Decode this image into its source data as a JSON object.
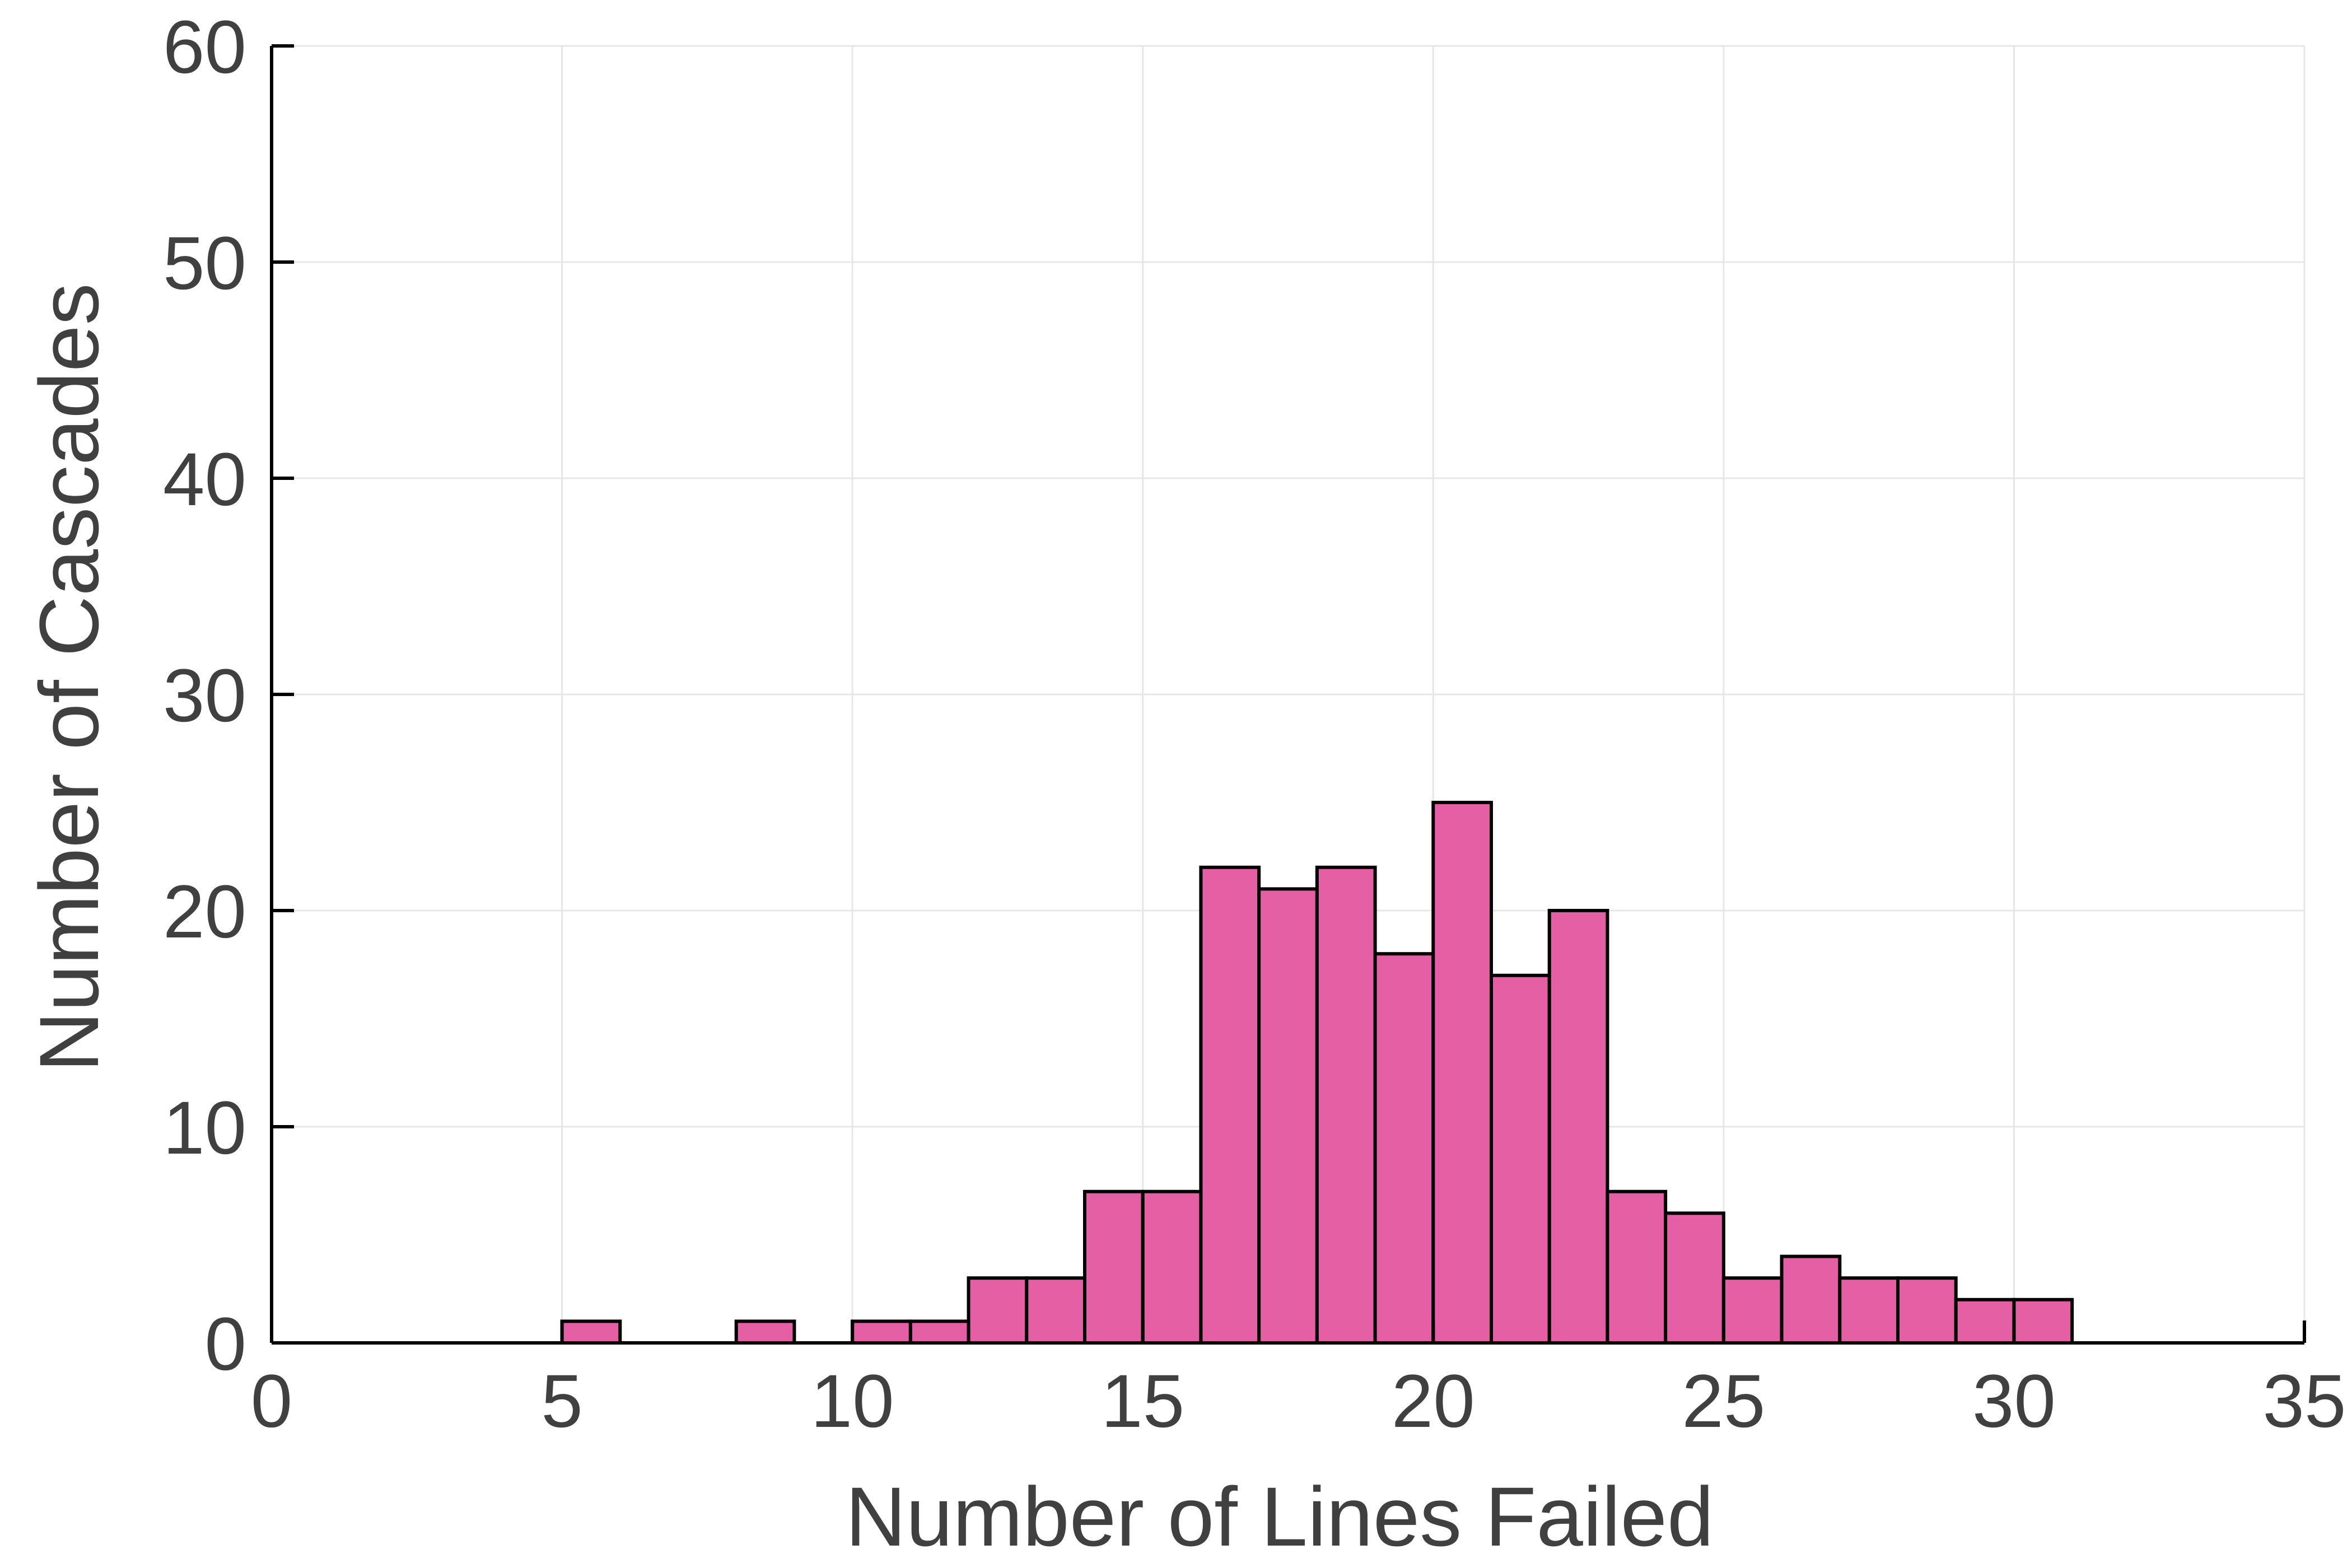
{
  "chart_data": {
    "type": "bar",
    "xlabel": "Number of Lines Failed",
    "ylabel": "Number of Cascades",
    "xlim": [
      0,
      35
    ],
    "ylim": [
      0,
      60
    ],
    "xticks": [
      0,
      5,
      10,
      15,
      20,
      25,
      30,
      35
    ],
    "yticks": [
      0,
      10,
      20,
      30,
      40,
      50,
      60
    ],
    "xtick_labels": [
      "0",
      "5",
      "10",
      "15",
      "20",
      "25",
      "30",
      "35"
    ],
    "ytick_labels": [
      "0",
      "10",
      "20",
      "30",
      "40",
      "50",
      "60"
    ],
    "grid": true,
    "bin_width": 1,
    "bins": [
      {
        "x": 5,
        "count": 1
      },
      {
        "x": 8,
        "count": 1
      },
      {
        "x": 10,
        "count": 1
      },
      {
        "x": 11,
        "count": 1
      },
      {
        "x": 12,
        "count": 3
      },
      {
        "x": 13,
        "count": 3
      },
      {
        "x": 14,
        "count": 7
      },
      {
        "x": 15,
        "count": 7
      },
      {
        "x": 16,
        "count": 22
      },
      {
        "x": 17,
        "count": 21
      },
      {
        "x": 18,
        "count": 22
      },
      {
        "x": 19,
        "count": 18
      },
      {
        "x": 20,
        "count": 25
      },
      {
        "x": 21,
        "count": 17
      },
      {
        "x": 22,
        "count": 20
      },
      {
        "x": 23,
        "count": 7
      },
      {
        "x": 24,
        "count": 6
      },
      {
        "x": 25,
        "count": 3
      },
      {
        "x": 26,
        "count": 4
      },
      {
        "x": 27,
        "count": 3
      },
      {
        "x": 28,
        "count": 3
      },
      {
        "x": 29,
        "count": 2
      },
      {
        "x": 30,
        "count": 2
      }
    ],
    "colors": {
      "bar_fill": "#e55fa4",
      "bar_edge": "#000000",
      "grid": "#e6e6e6",
      "axis": "#000000",
      "text": "#404040"
    }
  }
}
